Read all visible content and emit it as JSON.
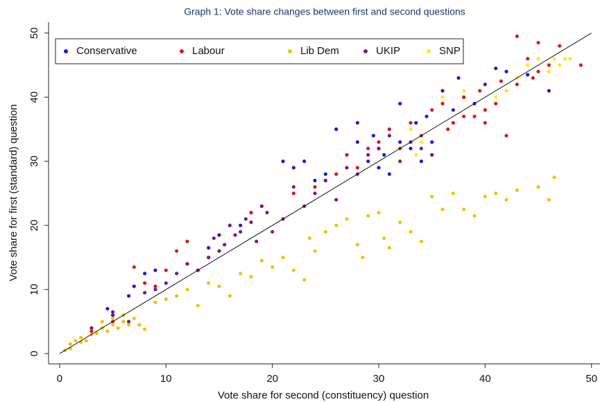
{
  "chart_data": {
    "type": "scatter",
    "title": "Graph 1: Vote share changes between first and second questions",
    "x_label": "Vote share for second (constituency) question",
    "y_label": "Vote share for first (standard) question",
    "xlim": [
      -1.04,
      50.8
    ],
    "ylim": [
      -1.6,
      51.7
    ],
    "xticks": [
      0,
      10,
      20,
      30,
      40,
      50
    ],
    "yticks": [
      0,
      10,
      20,
      30,
      40,
      50
    ],
    "grid": false,
    "legend": "top-left",
    "series": [
      {
        "name": "Conservative",
        "color": "#1a1ae0",
        "x": [
          6.5,
          7,
          8,
          9,
          12,
          14,
          15,
          17,
          18,
          19,
          21,
          22,
          23,
          24,
          25,
          26,
          27,
          28,
          28,
          29,
          29.5,
          30,
          30,
          30.5,
          31,
          31,
          32,
          32,
          33,
          33.5,
          34,
          34.5,
          35,
          35,
          36,
          37,
          37.5,
          38,
          39,
          40,
          41,
          42,
          44,
          46,
          4.5,
          5
        ],
        "values": [
          9,
          10.5,
          12.5,
          13,
          14,
          16.5,
          18.5,
          20,
          22,
          23,
          30,
          29,
          30,
          27,
          28,
          35,
          31,
          36,
          33,
          30,
          34,
          32,
          29,
          31,
          28,
          35,
          33,
          39,
          32,
          36,
          30,
          37,
          33,
          31,
          41,
          38,
          43,
          40,
          39,
          42,
          44.5,
          44,
          43.5,
          41,
          7,
          6
        ]
      },
      {
        "name": "Labour",
        "color": "#e01818",
        "x": [
          3,
          5,
          6,
          7,
          8,
          9,
          10,
          11,
          12,
          13,
          14,
          16,
          18,
          22,
          24,
          25,
          26,
          27,
          28,
          29,
          30,
          31,
          32,
          33,
          34,
          35,
          36,
          36.5,
          37,
          38,
          38,
          39,
          39.5,
          40,
          40,
          41,
          42,
          42,
          43,
          43,
          44,
          44.5,
          45,
          45,
          46,
          47,
          49,
          41.5
        ],
        "values": [
          3.5,
          5,
          6,
          13.5,
          11,
          10.5,
          13,
          16,
          17.5,
          13,
          15,
          20,
          22,
          25,
          26,
          27,
          28,
          31,
          29,
          32,
          33,
          35,
          32,
          36,
          34,
          38,
          39,
          35,
          36,
          37,
          40,
          37,
          41,
          38,
          36,
          39,
          34,
          41,
          42,
          49.5,
          46,
          43,
          48.5,
          44,
          45,
          48,
          45,
          42.5
        ]
      },
      {
        "name": "Lib Dem",
        "color": "#f2c200",
        "x": [
          0.5,
          1,
          1,
          1.5,
          2,
          2,
          2.5,
          3,
          3,
          3.5,
          4,
          4,
          4.5,
          5,
          5,
          5.5,
          6,
          6,
          6.5,
          7,
          7.5,
          8,
          9,
          10,
          11,
          12,
          13,
          14,
          15,
          16,
          17,
          18,
          19,
          20,
          21,
          22,
          23,
          23.5,
          24,
          25,
          26,
          27,
          28,
          28.5,
          29,
          30,
          30.5,
          31,
          32,
          33,
          34,
          35,
          36,
          37,
          38,
          39,
          40,
          41,
          42,
          43,
          45,
          46,
          46.5
        ],
        "values": [
          0.5,
          1.5,
          0.8,
          2,
          2.5,
          1.8,
          2,
          3,
          4,
          3.2,
          5,
          4,
          3.5,
          5.5,
          4.5,
          4,
          6,
          5,
          4.5,
          5.5,
          4.5,
          3.8,
          8,
          8.5,
          9,
          10,
          7.5,
          11,
          10.5,
          9,
          12.5,
          12,
          14.5,
          13.5,
          15,
          13,
          11.5,
          18,
          16,
          19,
          20,
          21,
          17,
          15,
          21.5,
          22,
          18,
          16.5,
          20.5,
          19,
          17.5,
          24.5,
          22.5,
          25,
          22.5,
          21.5,
          24.5,
          25,
          24,
          25.5,
          26,
          24,
          27.5
        ]
      },
      {
        "name": "UKIP",
        "color": "#7a1a86",
        "x": [
          3,
          5,
          6.5,
          8,
          9,
          10,
          11,
          12,
          13,
          14,
          14.5,
          15,
          15.5,
          16,
          16.5,
          17,
          17.5,
          18,
          18.5,
          19,
          19.5,
          20,
          21,
          22,
          23,
          24,
          25,
          26,
          27,
          28,
          29,
          30,
          31,
          32,
          33,
          34,
          35
        ],
        "values": [
          4,
          6.5,
          5,
          9.5,
          10,
          11,
          12.5,
          14,
          13,
          15,
          18,
          16,
          17,
          20,
          18.5,
          19,
          21,
          20.5,
          17.5,
          23,
          22,
          19,
          21,
          26,
          23,
          25,
          27,
          24,
          29,
          28,
          31,
          32,
          34,
          30,
          33,
          32,
          31
        ]
      },
      {
        "name": "SNP",
        "color": "#f4ee1e",
        "x": [
          33,
          34,
          36,
          38,
          41,
          42,
          43,
          44,
          45,
          46,
          46.5,
          47,
          47.5,
          48,
          33.5
        ],
        "values": [
          35,
          33,
          40,
          41,
          40,
          41,
          43,
          45,
          46,
          44,
          46,
          45,
          46,
          46,
          31
        ]
      }
    ]
  }
}
